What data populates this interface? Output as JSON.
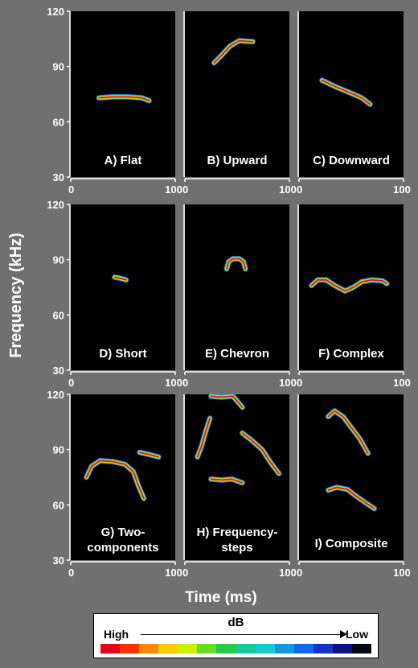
{
  "y_axis_label": "Frequency (kHz)",
  "x_axis_label": "Time (ms)",
  "legend": {
    "unit": "dB",
    "high_label": "High",
    "low_label": "Low",
    "colors": [
      "#e6001a",
      "#ff3000",
      "#ff8800",
      "#ffcc00",
      "#ccee00",
      "#66dd22",
      "#22cc44",
      "#11cc99",
      "#11cccc",
      "#1199dd",
      "#1166ee",
      "#1133cc",
      "#111188",
      "#080810"
    ]
  },
  "chart_data": [
    {
      "type": "spectrogram",
      "title": "A) Flat",
      "xlim": [
        0,
        100
      ],
      "ylim": [
        30,
        120
      ],
      "xticks": [
        "0",
        "100"
      ],
      "yticks": [
        "30",
        "60",
        "90",
        "120"
      ],
      "contours": [
        [
          [
            27,
            73
          ],
          [
            40,
            73.5
          ],
          [
            55,
            73.5
          ],
          [
            68,
            73
          ],
          [
            75,
            71.5
          ]
        ]
      ]
    },
    {
      "type": "spectrogram",
      "title": "B) Upward",
      "xlim": [
        0,
        100
      ],
      "ylim": [
        30,
        120
      ],
      "xticks": [
        "0",
        "100"
      ],
      "yticks": [],
      "contours": [
        [
          [
            28,
            92
          ],
          [
            35,
            96
          ],
          [
            43,
            101
          ],
          [
            52,
            104
          ],
          [
            65,
            103.5
          ]
        ]
      ]
    },
    {
      "type": "spectrogram",
      "title": "C) Downward",
      "xlim": [
        0,
        100
      ],
      "ylim": [
        30,
        120
      ],
      "xticks": [
        "0",
        "100"
      ],
      "yticks": [],
      "contours": [
        [
          [
            22,
            82.5
          ],
          [
            35,
            79
          ],
          [
            50,
            75.5
          ],
          [
            60,
            73
          ],
          [
            68,
            69.5
          ]
        ]
      ]
    },
    {
      "type": "spectrogram",
      "title": "D) Short",
      "xlim": [
        0,
        100
      ],
      "ylim": [
        30,
        120
      ],
      "xticks": [
        "0",
        "100"
      ],
      "yticks": [
        "30",
        "60",
        "90",
        "120"
      ],
      "contours": [
        [
          [
            42,
            80.5
          ],
          [
            47,
            80
          ],
          [
            53,
            79
          ]
        ]
      ]
    },
    {
      "type": "spectrogram",
      "title": "E) Chevron",
      "xlim": [
        0,
        100
      ],
      "ylim": [
        30,
        120
      ],
      "xticks": [
        "0",
        "100"
      ],
      "yticks": [],
      "contours": [
        [
          [
            40,
            85
          ],
          [
            42,
            89
          ],
          [
            46,
            90.5
          ],
          [
            52,
            90.5
          ],
          [
            56,
            89
          ],
          [
            58,
            85
          ]
        ]
      ]
    },
    {
      "type": "spectrogram",
      "title": "F) Complex",
      "xlim": [
        0,
        100
      ],
      "ylim": [
        30,
        120
      ],
      "xticks": [
        "0",
        "100"
      ],
      "yticks": [],
      "contours": [
        [
          [
            12,
            76
          ],
          [
            18,
            79
          ],
          [
            26,
            79
          ],
          [
            34,
            76
          ],
          [
            44,
            73
          ],
          [
            52,
            75
          ],
          [
            60,
            78
          ],
          [
            70,
            79
          ],
          [
            80,
            78.5
          ],
          [
            84,
            77
          ]
        ]
      ]
    },
    {
      "type": "spectrogram",
      "title": "G) Two-\ncomponents",
      "xlim": [
        0,
        100
      ],
      "ylim": [
        30,
        120
      ],
      "xticks": [
        "0",
        "100"
      ],
      "yticks": [
        "30",
        "60",
        "90",
        "120"
      ],
      "contours": [
        [
          [
            15,
            75
          ],
          [
            20,
            81
          ],
          [
            28,
            84
          ],
          [
            40,
            83.5
          ],
          [
            52,
            82
          ],
          [
            60,
            78
          ],
          [
            65,
            70
          ],
          [
            70,
            63.5
          ]
        ],
        [
          [
            66,
            88.5
          ],
          [
            74,
            87.5
          ],
          [
            84,
            86
          ]
        ]
      ]
    },
    {
      "type": "spectrogram",
      "title": "H) Frequency-\nsteps",
      "xlim": [
        0,
        100
      ],
      "ylim": [
        30,
        120
      ],
      "xticks": [
        "0",
        "100"
      ],
      "yticks": [],
      "contours": [
        [
          [
            12,
            86
          ],
          [
            16,
            92
          ],
          [
            20,
            100
          ],
          [
            24,
            107
          ]
        ],
        [
          [
            25,
            119
          ],
          [
            35,
            118.5
          ],
          [
            46,
            119
          ],
          [
            55,
            113
          ]
        ],
        [
          [
            25,
            74
          ],
          [
            35,
            73.5
          ],
          [
            45,
            74
          ],
          [
            55,
            72
          ]
        ],
        [
          [
            55,
            99
          ],
          [
            64,
            95
          ],
          [
            74,
            90
          ],
          [
            82,
            83
          ],
          [
            90,
            77
          ]
        ]
      ]
    },
    {
      "type": "spectrogram",
      "title": "I) Composite",
      "xlim": [
        0,
        100
      ],
      "ylim": [
        30,
        120
      ],
      "xticks": [
        "0",
        "100"
      ],
      "yticks": [],
      "contours": [
        [
          [
            28,
            108
          ],
          [
            34,
            111
          ],
          [
            42,
            108
          ],
          [
            50,
            102
          ],
          [
            58,
            96
          ],
          [
            66,
            88
          ]
        ],
        [
          [
            28,
            68
          ],
          [
            36,
            69.5
          ],
          [
            46,
            68.5
          ],
          [
            54,
            65
          ],
          [
            64,
            61
          ],
          [
            72,
            58
          ]
        ]
      ]
    }
  ]
}
